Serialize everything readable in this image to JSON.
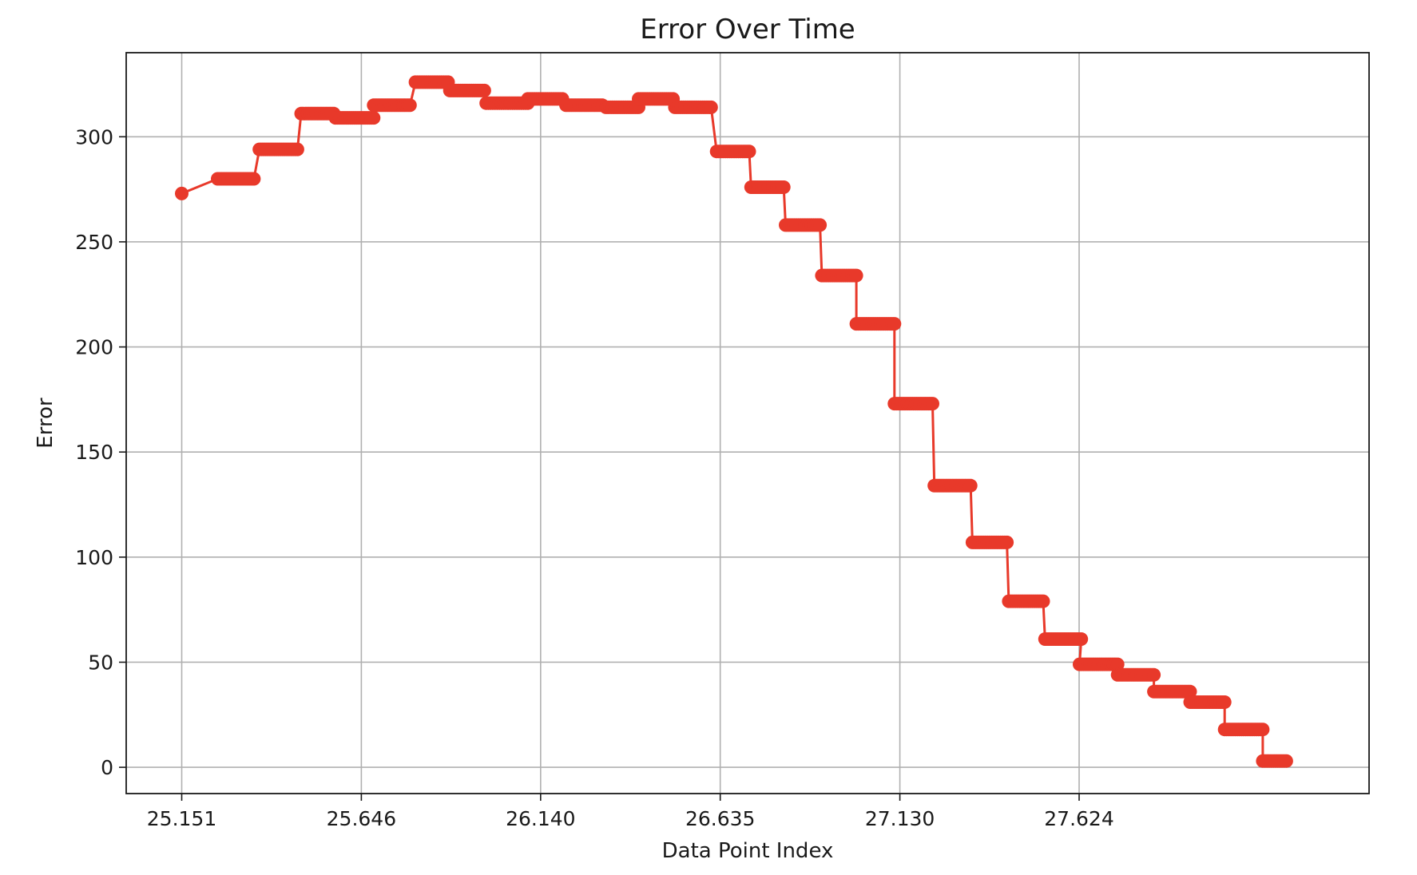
{
  "chart_data": {
    "type": "line",
    "title": "Error Over Time",
    "xlabel": "Data Point Index",
    "ylabel": "Error",
    "xlim": [
      24.998,
      28.423
    ],
    "ylim": [
      -12.5,
      340
    ],
    "x_ticks": [
      25.151,
      25.646,
      26.14,
      26.635,
      27.13,
      27.624
    ],
    "x_tick_labels": [
      "25.151",
      "25.646",
      "26.140",
      "26.635",
      "27.130",
      "27.624"
    ],
    "y_ticks": [
      0,
      50,
      100,
      150,
      200,
      250,
      300
    ],
    "y_tick_labels": [
      "0",
      "50",
      "100",
      "150",
      "200",
      "250",
      "300"
    ],
    "grid": true,
    "legend": "none",
    "series": [
      {
        "color": "#e8392a",
        "marker": "circle",
        "steps": [
          {
            "x": [
              25.151,
              25.151
            ],
            "y": 273
          },
          {
            "x": [
              25.25,
              25.35
            ],
            "y": 280
          },
          {
            "x": [
              25.365,
              25.47
            ],
            "y": 294
          },
          {
            "x": [
              25.48,
              25.57
            ],
            "y": 311
          },
          {
            "x": [
              25.575,
              25.68
            ],
            "y": 309
          },
          {
            "x": [
              25.68,
              25.78
            ],
            "y": 315
          },
          {
            "x": [
              25.795,
              25.885
            ],
            "y": 326
          },
          {
            "x": [
              25.89,
              25.985
            ],
            "y": 322
          },
          {
            "x": [
              25.99,
              26.105
            ],
            "y": 316
          },
          {
            "x": [
              26.105,
              26.2
            ],
            "y": 318
          },
          {
            "x": [
              26.21,
              26.31
            ],
            "y": 315
          },
          {
            "x": [
              26.32,
              26.41
            ],
            "y": 314
          },
          {
            "x": [
              26.41,
              26.505
            ],
            "y": 318
          },
          {
            "x": [
              26.51,
              26.61
            ],
            "y": 314
          },
          {
            "x": [
              26.625,
              26.715
            ],
            "y": 293
          },
          {
            "x": [
              26.72,
              26.81
            ],
            "y": 276
          },
          {
            "x": [
              26.815,
              26.91
            ],
            "y": 258
          },
          {
            "x": [
              26.915,
              27.01
            ],
            "y": 234
          },
          {
            "x": [
              27.01,
              27.115
            ],
            "y": 211
          },
          {
            "x": [
              27.115,
              27.22
            ],
            "y": 173
          },
          {
            "x": [
              27.225,
              27.325
            ],
            "y": 134
          },
          {
            "x": [
              27.33,
              27.425
            ],
            "y": 107
          },
          {
            "x": [
              27.43,
              27.525
            ],
            "y": 79
          },
          {
            "x": [
              27.53,
              27.63
            ],
            "y": 61
          },
          {
            "x": [
              27.625,
              27.73
            ],
            "y": 49
          },
          {
            "x": [
              27.73,
              27.83
            ],
            "y": 44
          },
          {
            "x": [
              27.83,
              27.93
            ],
            "y": 36
          },
          {
            "x": [
              27.93,
              28.025
            ],
            "y": 31
          },
          {
            "x": [
              28.025,
              28.13
            ],
            "y": 18
          },
          {
            "x": [
              28.13,
              28.195
            ],
            "y": 3
          }
        ]
      }
    ]
  }
}
